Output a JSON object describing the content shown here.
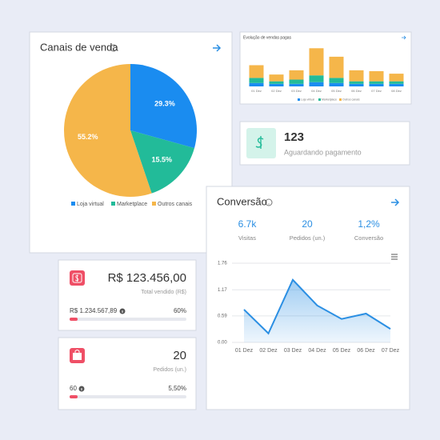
{
  "chart_data": [
    {
      "type": "pie",
      "title": "Canais de venda",
      "categories": [
        "Loja virtual",
        "Marketplace",
        "Outros canais"
      ],
      "values": [
        29.3,
        15.5,
        55.2
      ],
      "value_labels": [
        "29.3%",
        "15.5%",
        "55.2%"
      ],
      "colors": [
        "#1a8cf0",
        "#22bb99",
        "#f5b64a"
      ]
    },
    {
      "type": "bar",
      "stacked": true,
      "title": "Evolução de vendas pagas",
      "categories": [
        "01 Dez",
        "02 Dez",
        "03 Dez",
        "04 Dez",
        "05 Dez",
        "06 Dez",
        "07 Dez",
        "08 Dez"
      ],
      "series": [
        {
          "name": "Loja virtual",
          "color": "#1a8cf0",
          "values": [
            4,
            3,
            3,
            5,
            4,
            3,
            3,
            3
          ]
        },
        {
          "name": "Marketplace",
          "color": "#22bb99",
          "values": [
            6,
            3,
            5,
            8,
            6,
            3,
            3,
            3
          ]
        },
        {
          "name": "Outros canais",
          "color": "#f5b64a",
          "values": [
            15,
            8,
            11,
            32,
            25,
            13,
            12,
            9
          ]
        }
      ],
      "ylim": [
        0,
        50
      ]
    },
    {
      "type": "line",
      "title": "Conversão",
      "stats": [
        {
          "value": "6.7k",
          "label": "Visitas"
        },
        {
          "value": "20",
          "label": "Pedidos (un.)"
        },
        {
          "value": "1,2%",
          "label": "Conversão"
        }
      ],
      "categories": [
        "01 Dez",
        "02 Dez",
        "03 Dez",
        "04 Dez",
        "05 Dez",
        "06 Dez",
        "07 Dez"
      ],
      "values": [
        0.73,
        0.2,
        1.39,
        0.82,
        0.52,
        0.64,
        0.3
      ],
      "color": "#2b8fe3",
      "ylim": [
        0,
        1.76
      ],
      "yticks": [
        {
          "value": 0,
          "label": "0.00"
        },
        0.59,
        1.17,
        1.76
      ],
      "grid": true
    }
  ],
  "cards": {
    "pending": {
      "value": "123",
      "label": "Aguardando pagamento"
    },
    "sales": {
      "amount": "R$ 123.456,00",
      "label": "Total vendido (R$)",
      "goal": "R$ 1.234.567,89",
      "percent": "60%"
    },
    "orders": {
      "amount": "20",
      "label": "Pedidos (un.)",
      "goal": "60",
      "percent": "5,50%"
    }
  }
}
